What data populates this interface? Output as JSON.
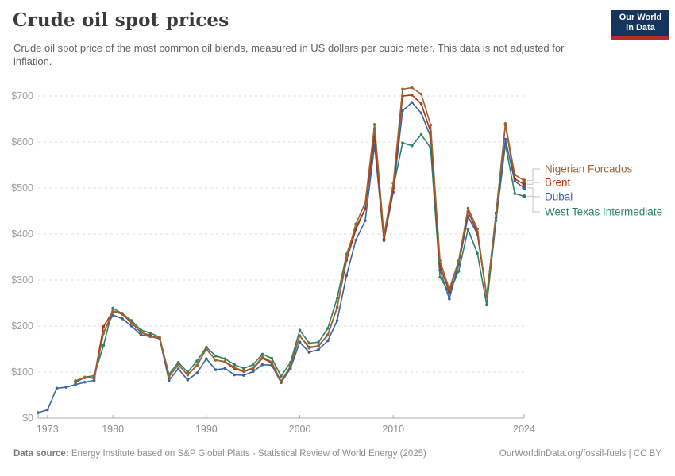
{
  "header": {
    "title": "Crude oil spot prices",
    "subtitle": "Crude oil spot price of the most common oil blends, measured in US dollars per cubic meter. This data is not adjusted for inflation."
  },
  "logo": {
    "line1": "Our World",
    "line2": "in Data",
    "bg_color": "#16355C",
    "bar_color": "#B23028"
  },
  "footer": {
    "source_label": "Data source:",
    "source_text": " Energy Institute based on S&P Global Platts - Statistical Review of World Energy (2025)",
    "link_text": "OurWorldinData.org/fossil-fuels | CC BY"
  },
  "chart_data": {
    "type": "line",
    "title": "Crude oil spot prices",
    "ylabel": "US dollars per cubic meter",
    "xlabel": "",
    "x_range": [
      1972,
      2024
    ],
    "ylim": [
      0,
      700
    ],
    "y_ticks": [
      0,
      100,
      200,
      300,
      400,
      500,
      600,
      700
    ],
    "y_tick_prefix": "$",
    "x_ticks": [
      1973,
      1980,
      1990,
      2000,
      2010,
      2024
    ],
    "grid": "horizontal-dashed",
    "legend_position": "right-of-line-ends",
    "style": {
      "grid_color": "#dddddd",
      "axis_color": "#ababab",
      "y_tick_text_color": "#9e9e9e",
      "x_tick_text_color": "#8f8f8f",
      "connector_color": "#cfcfcf"
    },
    "series": [
      {
        "name": "Nigerian Forcados",
        "color": "#9C6434",
        "start_year": 1976,
        "values": [
          81,
          89,
          86,
          184,
          233,
          228,
          209,
          186,
          177,
          175,
          91,
          116,
          94,
          115,
          150,
          126,
          123,
          110,
          102,
          109,
          133,
          122,
          79,
          113,
          179,
          152,
          157,
          180,
          240,
          350,
          422,
          468,
          638,
          398,
          510,
          715,
          718,
          704,
          637,
          342,
          280,
          342,
          456,
          411,
          265,
          444,
          640,
          529,
          516
        ]
      },
      {
        "name": "Brent",
        "color": "#B13507",
        "start_year": 1976,
        "values": [
          81,
          88,
          88,
          199,
          232,
          226,
          207,
          186,
          180,
          173,
          90,
          116,
          94,
          114,
          150,
          126,
          122,
          107,
          101,
          107,
          130,
          120,
          80,
          113,
          179,
          154,
          157,
          181,
          241,
          343,
          410,
          455,
          612,
          388,
          500,
          700,
          702,
          683,
          622,
          330,
          275,
          341,
          449,
          404,
          263,
          446,
          637,
          520,
          508
        ]
      },
      {
        "name": "Dubai",
        "color": "#3A62A5",
        "start_year": 1972,
        "values": [
          12,
          18,
          65,
          67,
          73,
          78,
          82,
          187,
          224,
          216,
          200,
          181,
          177,
          173,
          82,
          107,
          83,
          98,
          129,
          105,
          108,
          94,
          93,
          101,
          116,
          115,
          77,
          108,
          165,
          143,
          149,
          168,
          212,
          310,
          387,
          429,
          593,
          386,
          491,
          668,
          686,
          663,
          611,
          322,
          259,
          334,
          438,
          400,
          266,
          436,
          606,
          515,
          500
        ]
      },
      {
        "name": "West Texas Intermediate",
        "color": "#2C8465",
        "start_year": 1976,
        "values": [
          77,
          89,
          92,
          158,
          239,
          227,
          212,
          191,
          185,
          176,
          95,
          121,
          100,
          124,
          154,
          135,
          129,
          116,
          108,
          116,
          139,
          130,
          91,
          121,
          191,
          163,
          165,
          195,
          261,
          356,
          415,
          454,
          629,
          389,
          500,
          598,
          592,
          616,
          587,
          306,
          273,
          319,
          410,
          358,
          246,
          429,
          595,
          488,
          482
        ]
      }
    ]
  }
}
